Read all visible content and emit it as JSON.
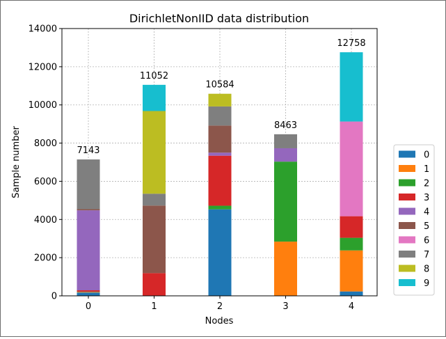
{
  "chart_data": {
    "type": "bar",
    "stacked": true,
    "title": "DirichletNonIID data distribution",
    "xlabel": "Nodes",
    "ylabel": "Sample number",
    "categories": [
      "0",
      "1",
      "2",
      "3",
      "4"
    ],
    "ylim": [
      0,
      14000
    ],
    "yticks": [
      0,
      2000,
      4000,
      6000,
      8000,
      10000,
      12000,
      14000
    ],
    "grid": true,
    "legend_position": "right",
    "totals": [
      7143,
      11052,
      10584,
      8463,
      12758
    ],
    "series": [
      {
        "name": "0",
        "color": "#1f77b4",
        "values": [
          170,
          0,
          4530,
          0,
          230
        ]
      },
      {
        "name": "1",
        "color": "#ff7f0e",
        "values": [
          20,
          0,
          0,
          2840,
          2150
        ]
      },
      {
        "name": "2",
        "color": "#2ca02c",
        "values": [
          20,
          0,
          190,
          4190,
          660
        ]
      },
      {
        "name": "3",
        "color": "#d62728",
        "values": [
          80,
          1190,
          2620,
          0,
          1130
        ]
      },
      {
        "name": "4",
        "color": "#9467bd",
        "values": [
          4190,
          0,
          160,
          700,
          0
        ]
      },
      {
        "name": "5",
        "color": "#8c564b",
        "values": [
          60,
          3540,
          1420,
          0,
          0
        ]
      },
      {
        "name": "6",
        "color": "#e377c2",
        "values": [
          0,
          0,
          0,
          0,
          4960
        ]
      },
      {
        "name": "7",
        "color": "#7f7f7f",
        "values": [
          2603,
          620,
          1000,
          733,
          0
        ]
      },
      {
        "name": "8",
        "color": "#bcbd22",
        "values": [
          0,
          4330,
          664,
          0,
          0
        ]
      },
      {
        "name": "9",
        "color": "#17becf",
        "values": [
          0,
          1372,
          0,
          0,
          3628
        ]
      }
    ]
  }
}
